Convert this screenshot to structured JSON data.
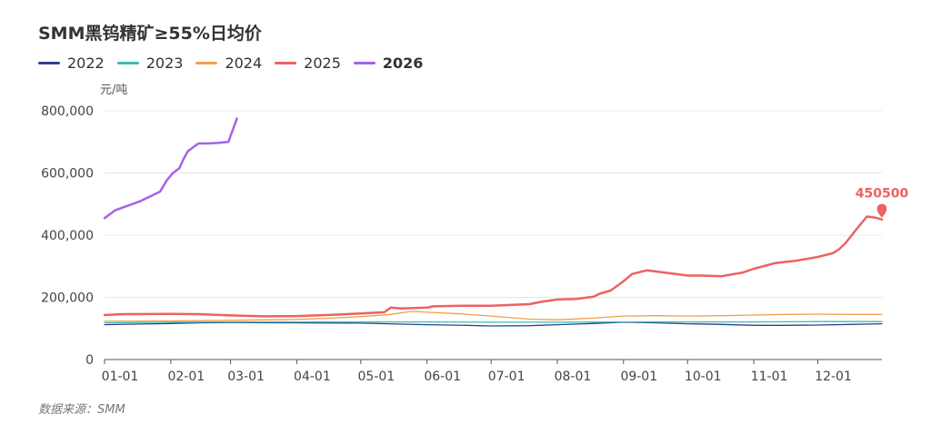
{
  "title": "SMM黑钨精矿≥55%日均价",
  "source": "数据来源：SMM",
  "chart_data": {
    "type": "line",
    "ylabel": "元/吨",
    "ylim": [
      0,
      800000
    ],
    "yticks": [
      0,
      200000,
      400000,
      600000,
      800000
    ],
    "ytick_labels": [
      "0",
      "200,000",
      "400,000",
      "600,000",
      "800,000"
    ],
    "xlim": [
      1,
      365
    ],
    "xticks": [
      1,
      32,
      60,
      91,
      121,
      152,
      182,
      213,
      244,
      274,
      305,
      335
    ],
    "xtick_labels": [
      "01-01",
      "02-01",
      "03-01",
      "04-01",
      "05-01",
      "06-01",
      "07-01",
      "08-01",
      "09-01",
      "10-01",
      "11-01",
      "12-01"
    ],
    "grid": true,
    "legend_position": "top-left",
    "highlight_series": "2026",
    "annotation": {
      "series": "2025",
      "x": 365,
      "y": 480000,
      "label": "450500"
    },
    "series": [
      {
        "name": "2022",
        "color": "#2f3f8f",
        "x": [
          1,
          15,
          32,
          45,
          60,
          91,
          121,
          140,
          152,
          170,
          182,
          200,
          213,
          230,
          244,
          260,
          274,
          290,
          305,
          320,
          335,
          350,
          365
        ],
        "y": [
          112000,
          114000,
          116000,
          118000,
          119000,
          118000,
          117000,
          114000,
          112000,
          110000,
          108000,
          109000,
          112000,
          116000,
          120000,
          118000,
          115000,
          113000,
          110000,
          110000,
          111000,
          113000,
          115000
        ]
      },
      {
        "name": "2023",
        "color": "#3bbdb5",
        "x": [
          1,
          32,
          60,
          91,
          121,
          152,
          182,
          213,
          244,
          274,
          305,
          335,
          365
        ],
        "y": [
          118000,
          120000,
          121000,
          121000,
          121000,
          121000,
          120000,
          120000,
          121000,
          121000,
          121000,
          122000,
          122000
        ]
      },
      {
        "name": "2024",
        "color": "#f0a04b",
        "x": [
          1,
          32,
          60,
          91,
          110,
          121,
          135,
          145,
          152,
          165,
          182,
          200,
          213,
          230,
          244,
          260,
          274,
          290,
          305,
          320,
          335,
          350,
          365
        ],
        "y": [
          123000,
          124000,
          126000,
          129000,
          134000,
          138000,
          145000,
          155000,
          152000,
          148000,
          140000,
          130000,
          128000,
          133000,
          140000,
          141000,
          140000,
          141000,
          143000,
          145000,
          146000,
          145000,
          145000
        ]
      },
      {
        "name": "2025",
        "color": "#ec6262",
        "x": [
          1,
          10,
          32,
          45,
          60,
          75,
          91,
          105,
          121,
          132,
          135,
          140,
          152,
          155,
          170,
          182,
          200,
          205,
          213,
          222,
          230,
          233,
          238,
          244,
          248,
          255,
          265,
          274,
          280,
          290,
          300,
          305,
          315,
          325,
          335,
          342,
          345,
          348,
          352,
          355,
          358,
          362,
          365
        ],
        "y": [
          143000,
          146000,
          147000,
          146000,
          142000,
          139000,
          140000,
          143000,
          148000,
          152000,
          167000,
          164000,
          167000,
          171000,
          173000,
          173000,
          178000,
          185000,
          193000,
          195000,
          202000,
          212000,
          222000,
          252000,
          275000,
          287000,
          278000,
          270000,
          270000,
          268000,
          280000,
          292000,
          310000,
          318000,
          330000,
          342000,
          355000,
          375000,
          410000,
          435000,
          460000,
          456000,
          450500
        ]
      },
      {
        "name": "2026",
        "color": "#a463e8",
        "x": [
          1,
          3,
          6,
          10,
          14,
          18,
          21,
          24,
          27,
          30,
          33,
          36,
          38,
          40,
          42,
          45,
          50,
          55,
          59,
          63
        ],
        "y": [
          455000,
          465000,
          480000,
          490000,
          500000,
          510000,
          520000,
          530000,
          540000,
          575000,
          600000,
          615000,
          645000,
          670000,
          680000,
          695000,
          695000,
          697000,
          700000,
          775000
        ]
      }
    ]
  }
}
